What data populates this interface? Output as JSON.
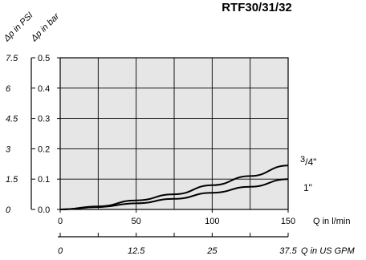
{
  "chart_data": {
    "type": "line",
    "title": "RTF30/31/32",
    "xlabel": "Q in l/min",
    "xlabel_secondary": "Q in US GPM",
    "ylabel": "Δp in bar",
    "ylabel_secondary": "Δp in PSI",
    "xlim": [
      0,
      150
    ],
    "ylim": [
      0,
      0.5
    ],
    "x_ticks": [
      0,
      50,
      100,
      150
    ],
    "y_ticks": [
      "0.0",
      "0.1",
      "0.2",
      "0.3",
      "0.4",
      "0.5"
    ],
    "y_ticks_secondary": [
      "0",
      "1.5",
      "3",
      "4.5",
      "6",
      "7.5"
    ],
    "x_ticks_secondary": [
      "0",
      "12.5",
      "25",
      "37.5"
    ],
    "grid": true,
    "series": [
      {
        "name": "3/4\"",
        "label_main": "3",
        "label_frac": "/4\"",
        "x": [
          0,
          25,
          50,
          75,
          100,
          125,
          150
        ],
        "y": [
          0,
          0.01,
          0.03,
          0.05,
          0.08,
          0.11,
          0.145
        ]
      },
      {
        "name": "1\"",
        "label_main": "1\"",
        "label_frac": "",
        "x": [
          0,
          25,
          50,
          75,
          100,
          125,
          150
        ],
        "y": [
          0,
          0.008,
          0.02,
          0.035,
          0.055,
          0.075,
          0.1
        ]
      }
    ]
  }
}
